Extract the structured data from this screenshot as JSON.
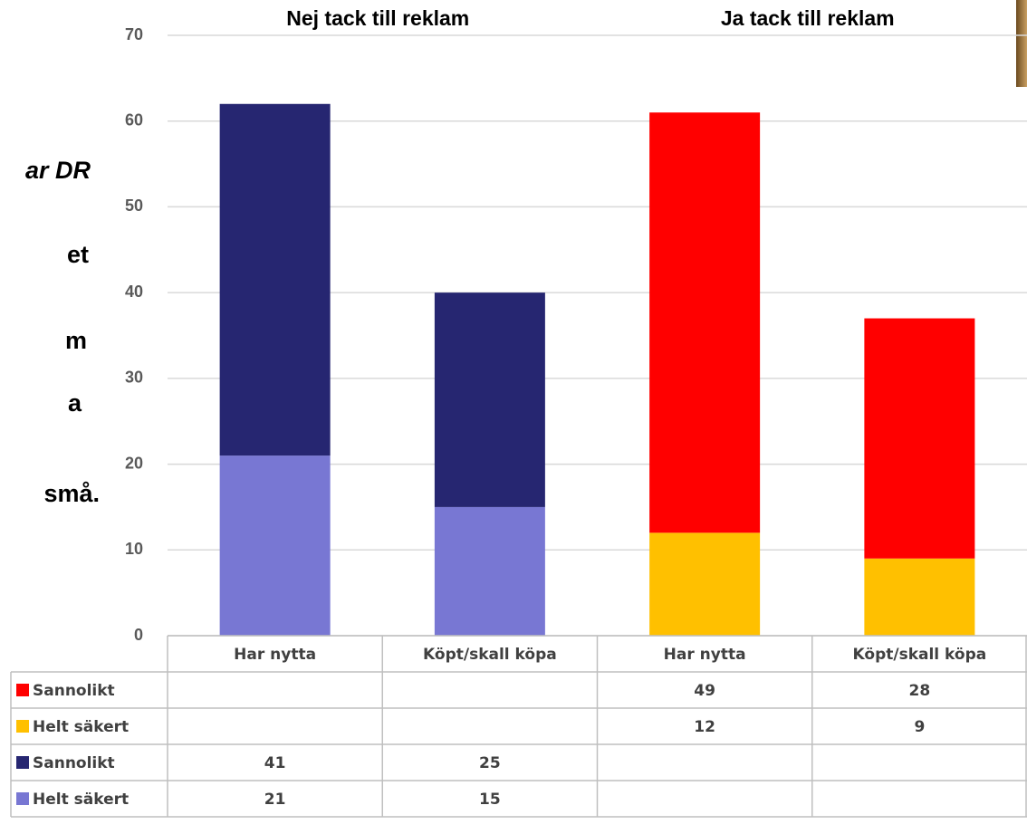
{
  "side_text": [
    "ar DR",
    "et",
    "m",
    "a",
    "små."
  ],
  "chart_data": {
    "type": "stacked_bar",
    "groups": [
      "Nej tack till reklam",
      "Ja tack till reklam"
    ],
    "categories": [
      "Har nytta",
      "Köpt/skall köpa",
      "Har nytta",
      "Köpt/skall köpa"
    ],
    "series": [
      {
        "name": "Sannolikt",
        "color": "#ff0000",
        "values": [
          null,
          null,
          49,
          28
        ]
      },
      {
        "name": "Helt säkert",
        "color": "#ffc000",
        "values": [
          null,
          null,
          12,
          9
        ]
      },
      {
        "name": "Sannolikt",
        "color": "#262671",
        "values": [
          41,
          25,
          null,
          null
        ]
      },
      {
        "name": "Helt säkert",
        "color": "#7877d3",
        "values": [
          21,
          15,
          null,
          null
        ]
      }
    ],
    "ylim": [
      0,
      70
    ],
    "yticks": [
      0,
      10,
      20,
      30,
      40,
      50,
      60,
      70
    ],
    "grid": true,
    "data_table": true
  }
}
